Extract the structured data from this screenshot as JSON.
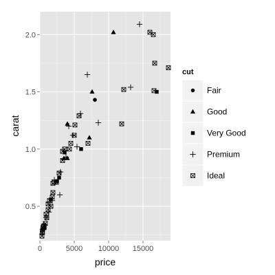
{
  "chart_data": {
    "type": "scatter",
    "xlabel": "price",
    "ylabel": "carat",
    "xlim": [
      0,
      19000
    ],
    "ylim": [
      0.2,
      2.2
    ],
    "x_ticks": [
      0,
      5000,
      10000,
      15000
    ],
    "x_tick_labels": [
      "0",
      "5000",
      "10000",
      "15000"
    ],
    "y_ticks": [
      0.5,
      1.0,
      1.5,
      2.0
    ],
    "y_tick_labels": [
      "0.5",
      "1.0",
      "1.5",
      "2.0"
    ],
    "grid": true,
    "background": "#e5e5e5",
    "grid_color": "#ffffff",
    "point_color": "#000000",
    "legend": {
      "title": "cut",
      "position": "right",
      "entries": [
        {
          "label": "Fair",
          "shape": "circle"
        },
        {
          "label": "Good",
          "shape": "triangle"
        },
        {
          "label": "Very Good",
          "shape": "square"
        },
        {
          "label": "Premium",
          "shape": "plus"
        },
        {
          "label": "Ideal",
          "shape": "boxed-x"
        }
      ]
    },
    "series": [
      {
        "name": "Fair",
        "shape": "circle",
        "points": [
          [
            8000,
            1.43
          ]
        ]
      },
      {
        "name": "Good",
        "shape": "triangle",
        "points": [
          [
            10700,
            2.02
          ],
          [
            3500,
            0.92
          ],
          [
            4000,
            0.92
          ],
          [
            4000,
            1.22
          ],
          [
            7600,
            1.5
          ],
          [
            7200,
            1.1
          ]
        ]
      },
      {
        "name": "Very Good",
        "shape": "square",
        "points": [
          [
            17000,
            1.5
          ],
          [
            6000,
            1.0
          ],
          [
            2800,
            0.75
          ],
          [
            3600,
            0.97
          ],
          [
            1600,
            0.56
          ],
          [
            700,
            0.31
          ],
          [
            2500,
            0.72
          ]
        ]
      },
      {
        "name": "Premium",
        "shape": "plus",
        "points": [
          [
            14500,
            2.09
          ],
          [
            6900,
            1.65
          ],
          [
            13200,
            1.54
          ],
          [
            8500,
            1.23
          ],
          [
            5900,
            1.31
          ],
          [
            4200,
            1.2
          ],
          [
            4800,
            1.12
          ],
          [
            5400,
            1.02
          ],
          [
            3800,
            0.93
          ],
          [
            3000,
            0.8
          ],
          [
            2100,
            0.73
          ],
          [
            2900,
            0.6
          ],
          [
            1800,
            0.55
          ],
          [
            1300,
            0.45
          ],
          [
            900,
            0.4
          ],
          [
            600,
            0.34
          ],
          [
            400,
            0.3
          ],
          [
            350,
            0.26
          ]
        ]
      },
      {
        "name": "Ideal",
        "shape": "boxed-x",
        "points": [
          [
            16000,
            2.02
          ],
          [
            16500,
            2.0
          ],
          [
            18700,
            1.71
          ],
          [
            16700,
            1.75
          ],
          [
            16600,
            1.51
          ],
          [
            12200,
            1.52
          ],
          [
            11900,
            1.22
          ],
          [
            5700,
            1.29
          ],
          [
            5100,
            1.21
          ],
          [
            7000,
            1.05
          ],
          [
            5000,
            1.12
          ],
          [
            4500,
            1.05
          ],
          [
            3600,
            1.0
          ],
          [
            4300,
            1.0
          ],
          [
            3300,
            0.98
          ],
          [
            3300,
            0.9
          ],
          [
            2800,
            0.79
          ],
          [
            2400,
            0.71
          ],
          [
            1900,
            0.7
          ],
          [
            2100,
            0.71
          ],
          [
            1900,
            0.62
          ],
          [
            1800,
            0.58
          ],
          [
            1400,
            0.55
          ],
          [
            1200,
            0.52
          ],
          [
            1600,
            0.5
          ],
          [
            1200,
            0.47
          ],
          [
            900,
            0.43
          ],
          [
            1000,
            0.4
          ],
          [
            800,
            0.35
          ],
          [
            600,
            0.33
          ],
          [
            500,
            0.32
          ],
          [
            400,
            0.29
          ],
          [
            350,
            0.27
          ],
          [
            300,
            0.24
          ],
          [
            450,
            0.31
          ]
        ]
      }
    ]
  }
}
